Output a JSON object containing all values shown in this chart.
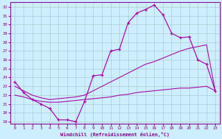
{
  "xlabel": "Windchill (Refroidissement éolien,°C)",
  "bg_color": "#cceeff",
  "grid_color": "#aacccc",
  "line_color": "#aa00aa",
  "xlim": [
    -0.5,
    23.5
  ],
  "ylim": [
    18.8,
    32.5
  ],
  "xticks": [
    0,
    1,
    2,
    3,
    4,
    5,
    6,
    7,
    8,
    9,
    10,
    11,
    12,
    13,
    14,
    15,
    16,
    17,
    18,
    19,
    20,
    21,
    22,
    23
  ],
  "yticks": [
    19,
    20,
    21,
    22,
    23,
    24,
    25,
    26,
    27,
    28,
    29,
    30,
    31,
    32
  ],
  "line1_x": [
    0,
    1,
    2,
    3,
    4,
    5,
    6,
    7,
    8,
    9,
    10,
    11,
    12,
    13,
    14,
    15,
    16,
    17,
    18,
    19,
    20,
    21,
    22,
    23
  ],
  "line1_y": [
    23.5,
    22.3,
    21.5,
    21.0,
    20.5,
    19.2,
    19.2,
    19.0,
    21.3,
    24.2,
    24.3,
    27.0,
    27.2,
    30.2,
    31.3,
    31.7,
    32.2,
    31.1,
    29.0,
    28.5,
    28.6,
    26.0,
    25.5,
    22.5
  ],
  "line2_x": [
    0,
    1,
    2,
    3,
    4,
    5,
    6,
    7,
    8,
    9,
    10,
    11,
    12,
    13,
    14,
    15,
    16,
    17,
    18,
    19,
    20,
    21,
    22,
    23
  ],
  "line2_y": [
    22.0,
    21.8,
    21.5,
    21.3,
    21.2,
    21.2,
    21.3,
    21.4,
    21.5,
    21.6,
    21.7,
    21.8,
    22.0,
    22.1,
    22.3,
    22.4,
    22.5,
    22.6,
    22.7,
    22.8,
    22.8,
    22.9,
    23.0,
    22.5
  ],
  "line3_x": [
    0,
    1,
    2,
    3,
    4,
    5,
    6,
    7,
    8,
    9,
    10,
    11,
    12,
    13,
    14,
    15,
    16,
    17,
    18,
    19,
    20,
    21,
    22,
    23
  ],
  "line3_y": [
    23.0,
    22.5,
    22.0,
    21.7,
    21.5,
    21.6,
    21.7,
    21.8,
    22.0,
    22.5,
    23.0,
    23.5,
    24.0,
    24.5,
    25.0,
    25.5,
    25.8,
    26.2,
    26.6,
    27.0,
    27.3,
    27.5,
    27.7,
    22.5
  ]
}
